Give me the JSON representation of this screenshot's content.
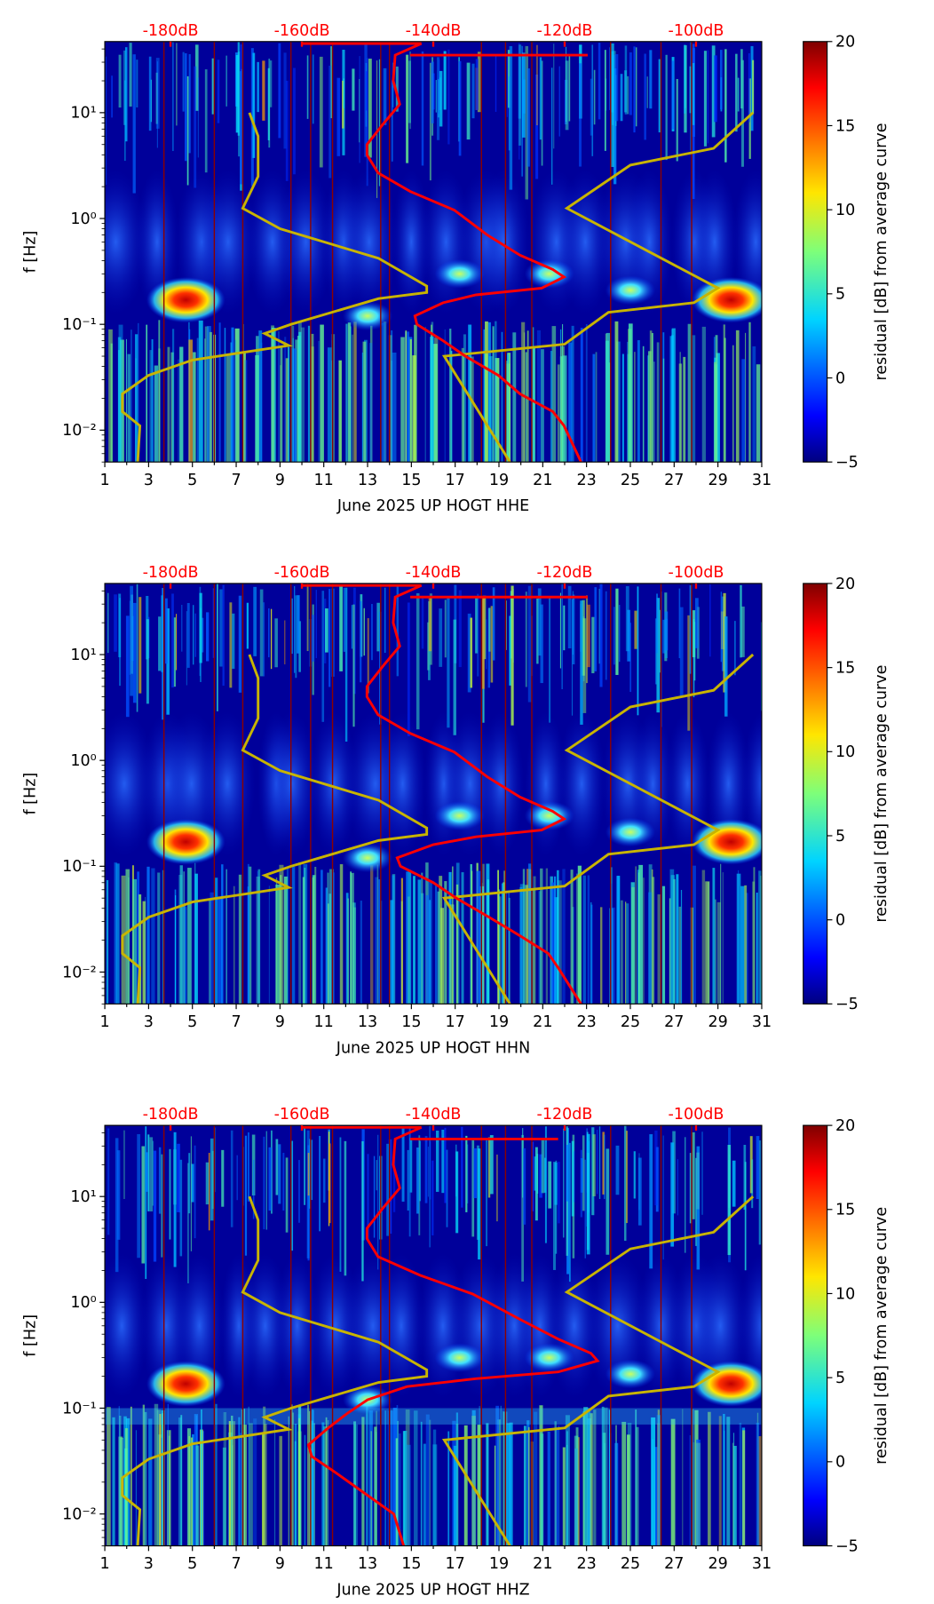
{
  "chart_data": {
    "type": "heatmap",
    "colorbar": {
      "label": "residual [dB] from average curve",
      "range": [
        -5,
        20
      ],
      "ticks": [
        "20",
        "15",
        "10",
        "5",
        "0",
        "−5"
      ],
      "tick_values": [
        20,
        15,
        10,
        5,
        0,
        -5
      ]
    },
    "xlim": [
      1,
      31
    ],
    "x_ticks": [
      "1",
      "3",
      "5",
      "7",
      "9",
      "11",
      "13",
      "15",
      "17",
      "19",
      "21",
      "23",
      "25",
      "27",
      "29",
      "31"
    ],
    "x_tick_values": [
      1,
      3,
      5,
      7,
      9,
      11,
      13,
      15,
      17,
      19,
      21,
      23,
      25,
      27,
      29,
      31
    ],
    "ylim": [
      0.005,
      47
    ],
    "y_ticks": [
      "10¹",
      "10⁰",
      "10⁻¹",
      "10⁻²"
    ],
    "y_tick_values": [
      10,
      1,
      0.1,
      0.01
    ],
    "ylabel": "f [Hz]",
    "top_axis": {
      "xlim": [
        -190,
        -90
      ],
      "ticks": [
        "-180dB",
        "-160dB",
        "-140dB",
        "-120dB",
        "-100dB"
      ],
      "tick_values": [
        -180,
        -160,
        -140,
        -120,
        -100
      ],
      "color": "#ff0000"
    },
    "colors": {
      "noise_model": "#c8b400",
      "psd_curve": "#ff0000",
      "event_lines": "#8b0000"
    },
    "event_days": [
      3.7,
      6.0,
      7.3,
      9.5,
      10.4,
      11.4,
      13.6,
      14.0,
      18.2,
      19.3,
      20.5,
      24.1,
      26.4,
      27.8
    ],
    "noise_model_low": [
      [
        7.6,
        10
      ],
      [
        8,
        6
      ],
      [
        8,
        2.5
      ],
      [
        7.3,
        1.25
      ],
      [
        9,
        0.8
      ],
      [
        13.5,
        0.42
      ],
      [
        15.7,
        0.23
      ],
      [
        15.7,
        0.2
      ],
      [
        13.5,
        0.175
      ],
      [
        9.5,
        0.1
      ],
      [
        8.3,
        0.082
      ],
      [
        9.4,
        0.063
      ],
      [
        5,
        0.046
      ],
      [
        3,
        0.033
      ],
      [
        1.8,
        0.022
      ],
      [
        1.8,
        0.015
      ],
      [
        2.6,
        0.011
      ],
      [
        2.5,
        0.005
      ]
    ],
    "noise_model_high": [
      [
        19.5,
        0.005
      ],
      [
        16.5,
        0.05
      ],
      [
        22,
        0.065
      ],
      [
        24,
        0.13
      ],
      [
        27.9,
        0.16
      ],
      [
        29,
        0.22
      ],
      [
        22.1,
        1.25
      ],
      [
        25,
        3.2
      ],
      [
        28.8,
        4.6
      ],
      [
        30.6,
        10
      ]
    ],
    "hot_spots": [
      {
        "day": 4.7,
        "f": 0.17,
        "value": 18
      },
      {
        "day": 29.6,
        "f": 0.17,
        "value": 18
      },
      {
        "day": 25.0,
        "f": 0.21,
        "value": 8
      },
      {
        "day": 13.0,
        "f": 0.12,
        "value": 7
      },
      {
        "day": 17.2,
        "f": 0.3,
        "value": 5
      },
      {
        "day": 21.3,
        "f": 0.3,
        "value": 5
      }
    ],
    "panels": [
      {
        "xlabel": "June 2025 UP HOGT  HHE",
        "psd_db": [
          [
            -141.8,
            45
          ],
          [
            -145.8,
            35
          ],
          [
            -146.1,
            20
          ],
          [
            -145.1,
            12
          ],
          [
            -147.5,
            8
          ],
          [
            -150.1,
            5
          ],
          [
            -150.1,
            4
          ],
          [
            -148.4,
            2.7
          ],
          [
            -143.5,
            1.8
          ],
          [
            -136.8,
            1.2
          ],
          [
            -131.8,
            0.7
          ],
          [
            -126.8,
            0.45
          ],
          [
            -121.8,
            0.33
          ],
          [
            -120.1,
            0.28
          ],
          [
            -123.5,
            0.22
          ],
          [
            -133.5,
            0.19
          ],
          [
            -138.5,
            0.16
          ],
          [
            -142.8,
            0.12
          ],
          [
            -142.5,
            0.1
          ],
          [
            -138.5,
            0.07
          ],
          [
            -135.1,
            0.05
          ],
          [
            -130.1,
            0.033
          ],
          [
            -126.8,
            0.022
          ],
          [
            -121.8,
            0.015
          ],
          [
            -120.1,
            0.011
          ],
          [
            -117.5,
            0.005
          ]
        ],
        "psd_top_line_db": [
          [
            -160,
            45
          ],
          [
            -141.8,
            45
          ]
        ],
        "psd_spike_line_db": [
          [
            -143.5,
            35
          ],
          [
            -116.5,
            35
          ]
        ]
      },
      {
        "xlabel": "June 2025 UP HOGT  HHN",
        "psd_db": [
          [
            -141.8,
            45
          ],
          [
            -145.8,
            35
          ],
          [
            -146.1,
            20
          ],
          [
            -145.1,
            12
          ],
          [
            -147.5,
            8
          ],
          [
            -150.1,
            5
          ],
          [
            -150.1,
            4
          ],
          [
            -148.4,
            2.7
          ],
          [
            -143.5,
            1.8
          ],
          [
            -136.8,
            1.2
          ],
          [
            -131.8,
            0.7
          ],
          [
            -126.8,
            0.45
          ],
          [
            -121.8,
            0.33
          ],
          [
            -120.1,
            0.28
          ],
          [
            -123.5,
            0.22
          ],
          [
            -133.5,
            0.19
          ],
          [
            -140,
            0.16
          ],
          [
            -145.5,
            0.12
          ],
          [
            -145,
            0.1
          ],
          [
            -140,
            0.07
          ],
          [
            -136.5,
            0.05
          ],
          [
            -131.5,
            0.033
          ],
          [
            -126.8,
            0.022
          ],
          [
            -122.5,
            0.015
          ],
          [
            -121,
            0.011
          ],
          [
            -117.5,
            0.005
          ]
        ],
        "psd_top_line_db": [
          [
            -160,
            45
          ],
          [
            -141.8,
            45
          ]
        ],
        "psd_spike_line_db": [
          [
            -143.5,
            35
          ],
          [
            -116.5,
            35
          ]
        ]
      },
      {
        "xlabel": "June 2025 UP HOGT  HHZ",
        "psd_db": [
          [
            -141.8,
            45
          ],
          [
            -145.8,
            35
          ],
          [
            -146.1,
            20
          ],
          [
            -145.1,
            12
          ],
          [
            -147.5,
            8
          ],
          [
            -150.1,
            5
          ],
          [
            -150.1,
            4
          ],
          [
            -148.4,
            2.7
          ],
          [
            -142,
            1.8
          ],
          [
            -134,
            1.2
          ],
          [
            -127,
            0.7
          ],
          [
            -121,
            0.45
          ],
          [
            -116,
            0.33
          ],
          [
            -115,
            0.28
          ],
          [
            -121,
            0.22
          ],
          [
            -133.5,
            0.19
          ],
          [
            -144,
            0.16
          ],
          [
            -150,
            0.12
          ],
          [
            -153,
            0.09
          ],
          [
            -156,
            0.065
          ],
          [
            -159,
            0.045
          ],
          [
            -158.5,
            0.035
          ],
          [
            -155,
            0.025
          ],
          [
            -150,
            0.015
          ],
          [
            -146,
            0.01
          ],
          [
            -144.5,
            0.005
          ]
        ],
        "psd_top_line_db": [
          [
            -160,
            45
          ],
          [
            -141.8,
            45
          ]
        ],
        "psd_spike_line_db": [
          [
            -143.5,
            35
          ],
          [
            -121,
            35
          ]
        ]
      }
    ]
  }
}
